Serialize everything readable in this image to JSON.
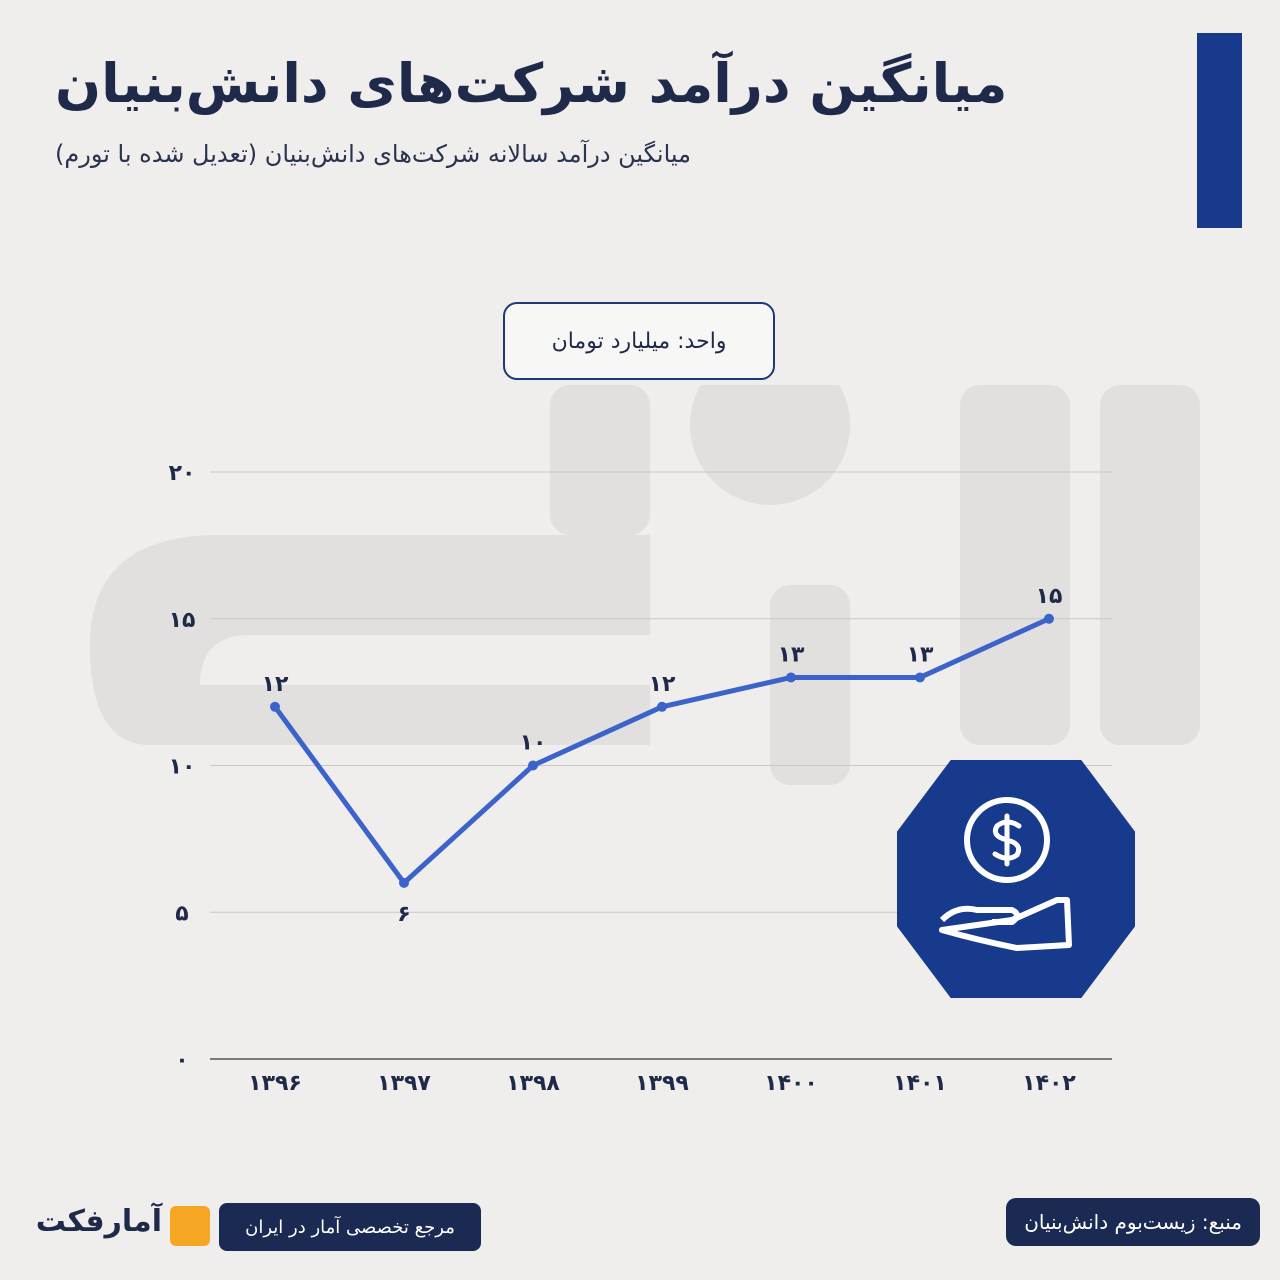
{
  "header": {
    "title": "میانگین درآمد شرکت‌های دانش‌بنیان",
    "subtitle": "میانگین درآمد سالانه شرکت‌های دانش‌بنیان (تعدیل شده با تورم)",
    "accent": "#173a8c"
  },
  "unit_label": "واحد: میلیارد تومان",
  "chart_data": {
    "type": "line",
    "categories": [
      "۱۳۹۶",
      "۱۳۹۷",
      "۱۳۹۸",
      "۱۳۹۹",
      "۱۴۰۰",
      "۱۴۰۱",
      "۱۴۰۲"
    ],
    "values": [
      12,
      6,
      10,
      12,
      13,
      13,
      15
    ],
    "data_labels": [
      "۱۲",
      "۶",
      "۱۰",
      "۱۲",
      "۱۳",
      "۱۳",
      "۱۵"
    ],
    "yticks": [
      0,
      5,
      10,
      15,
      20
    ],
    "ytick_labels": [
      "۰",
      "۵",
      "۱۰",
      "۱۵",
      "۲۰"
    ],
    "ylim": [
      0,
      20
    ],
    "grid": true,
    "line_color": "#3c63c9"
  },
  "icon": "coin-in-hand-icon",
  "footer": {
    "source": "منبع: زیست‌بوم دانش‌بنیان",
    "reference": "مرجع تخصصی آمار در ایران",
    "logo": "آمارفکت",
    "logo_color": "#f5a623"
  }
}
